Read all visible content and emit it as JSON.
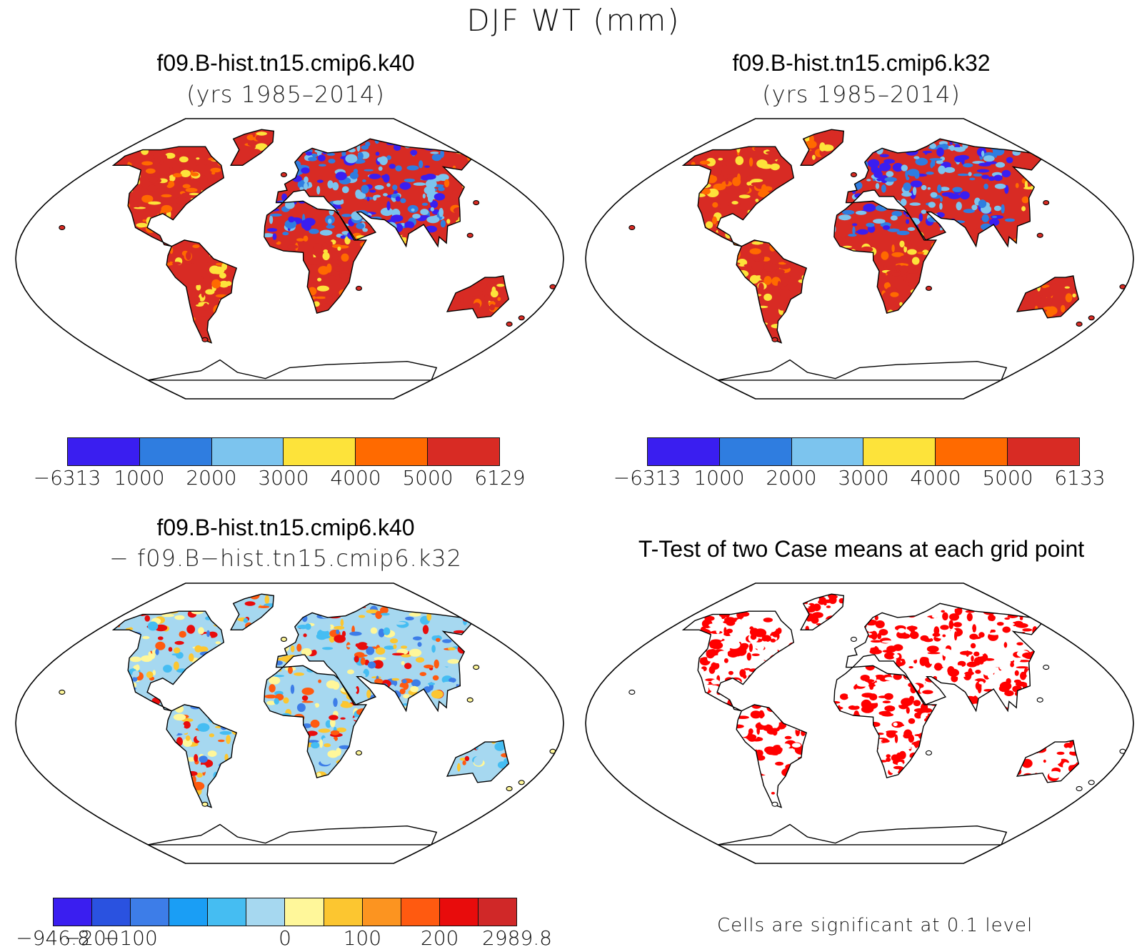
{
  "figure_title": "DJF WT (mm)",
  "panels": [
    {
      "title": "f09.B-hist.tn15.cmip6.k40",
      "subtitle": "(yrs 1985–2014)",
      "colorbar": {
        "colors": [
          "#3a1ef0",
          "#2f7de0",
          "#7cc4ee",
          "#fde33a",
          "#ff6a00",
          "#d82b24"
        ],
        "labels": [
          "−6313",
          "1000",
          "2000",
          "3000",
          "4000",
          "5000",
          "6129"
        ]
      }
    },
    {
      "title": "f09.B-hist.tn15.cmip6.k32",
      "subtitle": "(yrs 1985–2014)",
      "colorbar": {
        "colors": [
          "#3a1ef0",
          "#2f7de0",
          "#7cc4ee",
          "#fde33a",
          "#ff6a00",
          "#d82b24"
        ],
        "labels": [
          "−6313",
          "1000",
          "2000",
          "3000",
          "4000",
          "5000",
          "6133"
        ]
      }
    },
    {
      "title": "f09.B-hist.tn15.cmip6.k40",
      "subtitle": "− f09.B−hist.tn15.cmip6.k32",
      "colorbar": {
        "colors": [
          "#3a1ef0",
          "#2a52e0",
          "#3d7de8",
          "#1a9ef5",
          "#45bdf2",
          "#a6d8f0",
          "#fff79a",
          "#fcc630",
          "#fc9420",
          "#ff5a10",
          "#e80c0c",
          "#d02828"
        ],
        "labels": [
          "−946.8",
          "−200",
          "−100",
          "0",
          "100",
          "200",
          "2989.8"
        ]
      }
    },
    {
      "title": "T-Test of two Case means at each grid point",
      "subtitle": "",
      "note": "Cells are significant at 0.1 level",
      "significance_color": "#ff0000"
    }
  ]
}
